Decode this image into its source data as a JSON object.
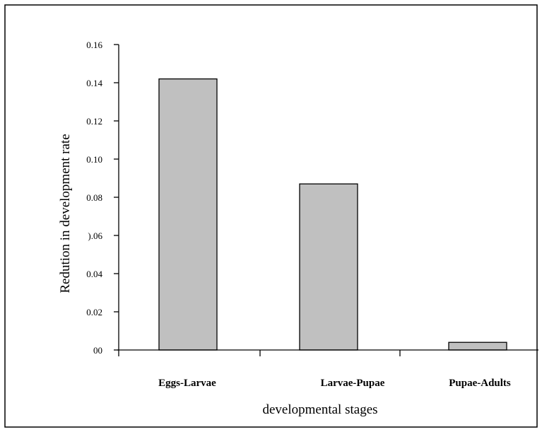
{
  "chart_data": {
    "type": "bar",
    "title": "",
    "xlabel": "developmental stages",
    "ylabel": "Redution in development rate",
    "categories": [
      "Eggs-Larvae",
      "Larvae-Pupae",
      "Pupae-Adults"
    ],
    "values": [
      0.142,
      0.087,
      0.004
    ],
    "ylim": [
      0,
      0.16
    ],
    "yticks": [
      {
        "value": 0.0,
        "label": "00"
      },
      {
        "value": 0.02,
        "label": "0.02"
      },
      {
        "value": 0.04,
        "label": "0.04"
      },
      {
        "value": 0.06,
        "label": ").06"
      },
      {
        "value": 0.08,
        "label": "0.08"
      },
      {
        "value": 0.1,
        "label": "0.10"
      },
      {
        "value": 0.12,
        "label": "0.12"
      },
      {
        "value": 0.14,
        "label": "0.14"
      },
      {
        "value": 0.16,
        "label": "0.16"
      }
    ],
    "grid": false,
    "legend": "none",
    "colors": {
      "bar_fill": "#c0c0c0",
      "bar_stroke": "#000000",
      "axis": "#000000",
      "frame": "#000000"
    }
  }
}
